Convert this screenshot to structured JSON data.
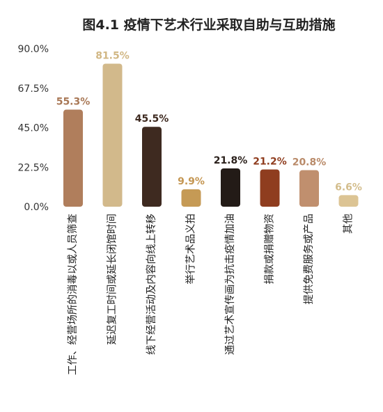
{
  "chart_data": {
    "type": "bar",
    "title": "图4.1  疫情下艺术行业采取自助与互助措施",
    "xlabel": "",
    "ylabel": "",
    "ylim": [
      0,
      90
    ],
    "y_ticks": [
      "0.0%",
      "22.5%",
      "45.0%",
      "67.5%",
      "90.0%"
    ],
    "grid": false,
    "categories": [
      "工作、经营场所的消毒以或人员筛查",
      "延迟复工时间或延长闭馆时间",
      "线下经营活动及内容向线上转移",
      "举行艺术品义拍",
      "通过艺术宣传画为抗击疫情加油",
      "捐款或捐赠物资",
      "提供免费服务或产品",
      "其他"
    ],
    "values": [
      55.3,
      81.5,
      45.5,
      9.9,
      21.8,
      21.2,
      20.8,
      6.6
    ],
    "value_labels": [
      "55.3%",
      "81.5%",
      "45.5%",
      "9.9%",
      "21.8%",
      "21.2%",
      "20.8%",
      "6.6%"
    ],
    "bar_colors": [
      "#b07e5c",
      "#d2b98b",
      "#3e2a20",
      "#c59a55",
      "#231b17",
      "#8f3d1f",
      "#c08f6e",
      "#dcc494"
    ],
    "label_colors": [
      "#a97856",
      "#d1b784",
      "#3e2a20",
      "#c49652",
      "#2b211c",
      "#8f3d1f",
      "#b98a69",
      "#d3bd8c"
    ]
  }
}
